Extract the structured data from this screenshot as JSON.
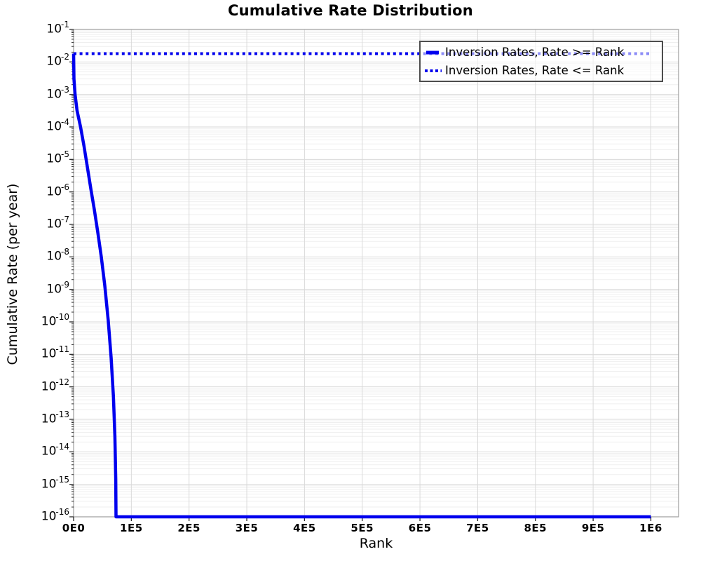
{
  "page": {
    "background": "#ffffff"
  },
  "chart_data": {
    "type": "line",
    "title": "Cumulative Rate Distribution",
    "xlabel": "Rank",
    "ylabel": "Cumulative Rate (per year)",
    "x_axis": {
      "min": 0,
      "max": 1048000,
      "ticks": [
        {
          "value": 0,
          "label": "0E0"
        },
        {
          "value": 100000,
          "label": "1E5"
        },
        {
          "value": 200000,
          "label": "2E5"
        },
        {
          "value": 300000,
          "label": "3E5"
        },
        {
          "value": 400000,
          "label": "4E5"
        },
        {
          "value": 500000,
          "label": "5E5"
        },
        {
          "value": 600000,
          "label": "6E5"
        },
        {
          "value": 700000,
          "label": "7E5"
        },
        {
          "value": 800000,
          "label": "8E5"
        },
        {
          "value": 900000,
          "label": "9E5"
        },
        {
          "value": 1000000,
          "label": "1E6"
        }
      ]
    },
    "y_axis": {
      "scale": "log10",
      "top_exponent": -1,
      "bottom_exponent": -16,
      "tick_base": "10",
      "tick_exponents": [
        -1,
        -2,
        -3,
        -4,
        -5,
        -6,
        -7,
        -8,
        -9,
        -10,
        -11,
        -12,
        -13,
        -14,
        -15,
        -16
      ]
    },
    "grid": {
      "show_minor": true,
      "major_color": "#d9d9d9",
      "minor_color": "#efefef"
    },
    "axis_style": {
      "spine_color": "#a3a3a3",
      "tick_color": "#2a2a2a"
    },
    "accent_color": "#0000ee",
    "legend": {
      "position": "top-right",
      "border_color": "#4d4d4d",
      "entries": [
        {
          "label": "Inversion Rates, Rate >= Rank",
          "style": "solid",
          "color": "#0000ee"
        },
        {
          "label": "Inversion Rates, Rate <= Rank",
          "style": "dotted",
          "color": "#0000ee"
        }
      ]
    },
    "series": [
      {
        "name": "Inversion Rates, Rate >= Rank",
        "style": "solid",
        "color": "#0000ee",
        "stroke_width": 4.5,
        "points": [
          [
            0,
            0.018
          ],
          [
            600,
            0.003
          ],
          [
            2500,
            0.001
          ],
          [
            6000,
            0.00032
          ],
          [
            12000,
            0.0001
          ],
          [
            18000,
            2.6e-05
          ],
          [
            24000,
            5.5e-06
          ],
          [
            30000,
            1.2e-06
          ],
          [
            36000,
            2.8e-07
          ],
          [
            42000,
            5.5e-08
          ],
          [
            48000,
            1e-08
          ],
          [
            54000,
            1.3e-09
          ],
          [
            60000,
            1.1e-10
          ],
          [
            65000,
            8e-12
          ],
          [
            69000,
            5e-13
          ],
          [
            71500,
            3e-14
          ],
          [
            73000,
            1.5e-15
          ],
          [
            73500,
            1e-16
          ],
          [
            1000000,
            1e-16
          ]
        ]
      },
      {
        "name": "Inversion Rates, Rate <= Rank",
        "style": "dotted",
        "color": "#0000ee",
        "stroke_width": 4,
        "points": [
          [
            0,
            0.018
          ],
          [
            1000000,
            0.018
          ]
        ]
      }
    ]
  }
}
